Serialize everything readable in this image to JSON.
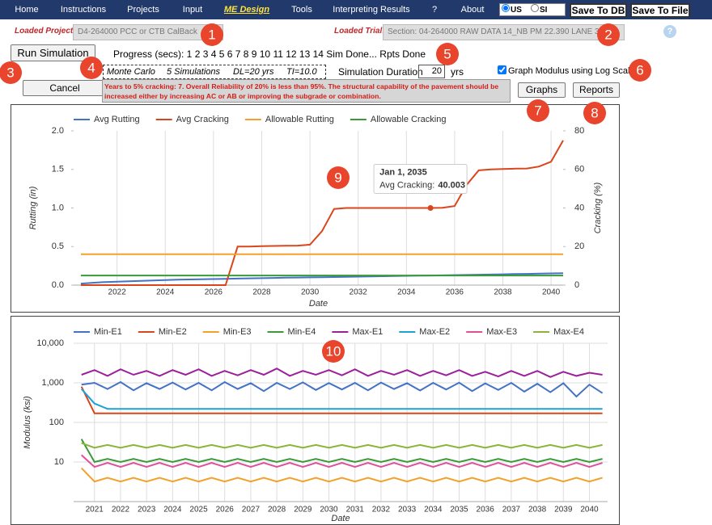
{
  "menu": [
    "Home",
    "Instructions",
    "Projects",
    "Input",
    "ME Design",
    "Tools",
    "Interpreting Results",
    "?",
    "About"
  ],
  "units": {
    "options": [
      "US",
      "SI"
    ],
    "selected": 0
  },
  "buttons": {
    "save_db": "Save To DB",
    "save_file": "Save To File",
    "run": "Run Simulation",
    "cancel": "Cancel",
    "graphs": "Graphs",
    "reports": "Reports"
  },
  "project": {
    "label": "Loaded Project:",
    "value": "D4-264000 PCC or CTB CalBack"
  },
  "trial": {
    "label": "Loaded Trial:",
    "value": "Section: 04-264000 RAW DATA 14_NB PM 22.390 LANE 3"
  },
  "help_icon": "?",
  "progress": "Progress (secs): 1 2 3 4 5 6 7 8 9 10 11 12 13 14 Sim Done... Rpts Done",
  "monte_carlo": [
    "Monte Carlo",
    "5 Simulations",
    "DL=20 yrs",
    "TI=10.0"
  ],
  "duration": {
    "label": "Simulation Duration",
    "value": "20",
    "unit": "yrs"
  },
  "log_scale": {
    "label": "Graph Modulus using Log Scale",
    "checked": true
  },
  "warning": "Years to 5% cracking: 7. Overall Reliability of 20% is less than 95%. The structural capability of the pavement should be increased either by increasing AC or AB or improving the subgrade or combination.",
  "callouts": [
    "1",
    "2",
    "3",
    "4",
    "5",
    "6",
    "7",
    "8",
    "9",
    "10"
  ],
  "chart_data": [
    {
      "type": "line",
      "xlabel": "Date",
      "ylabel": "Rutting (in)",
      "y2label": "Cracking (%)",
      "x": [
        2020.5,
        2021,
        2021.5,
        2022,
        2022.5,
        2023,
        2023.5,
        2024,
        2024.5,
        2025,
        2025.5,
        2026,
        2026.5,
        2027,
        2027.5,
        2028,
        2028.5,
        2029,
        2029.5,
        2030,
        2030.5,
        2031,
        2031.5,
        2032,
        2032.5,
        2033,
        2033.5,
        2034,
        2034.5,
        2035,
        2035.5,
        2036,
        2036.5,
        2037,
        2037.5,
        2038,
        2038.5,
        2039,
        2039.5,
        2040,
        2040.5
      ],
      "xlim": [
        2020.2,
        2040.5
      ],
      "xticks": [
        2022,
        2024,
        2026,
        2028,
        2030,
        2032,
        2034,
        2036,
        2038,
        2040
      ],
      "ylim": [
        0,
        2
      ],
      "yticks": [
        {
          "value": 0,
          "label": "0.0"
        },
        0.5,
        {
          "value": 1,
          "label": "1.0"
        },
        1.5,
        {
          "value": 2,
          "label": "2.0"
        }
      ],
      "y2lim": [
        0,
        80
      ],
      "y2ticks": [
        0,
        20,
        40,
        60,
        80
      ],
      "xgrid": true,
      "ygrid": false,
      "log_scale": false,
      "series": [
        {
          "name": "Avg Rutting",
          "color": "#4472c4",
          "values": [
            0.02,
            0.03,
            0.04,
            0.045,
            0.05,
            0.055,
            0.06,
            0.065,
            0.07,
            0.073,
            0.076,
            0.079,
            0.082,
            0.085,
            0.088,
            0.09,
            0.093,
            0.096,
            0.098,
            0.1,
            0.102,
            0.105,
            0.107,
            0.11,
            0.112,
            0.115,
            0.117,
            0.12,
            0.122,
            0.125,
            0.127,
            0.13,
            0.132,
            0.135,
            0.137,
            0.14,
            0.143,
            0.146,
            0.149,
            0.152,
            0.155
          ]
        },
        {
          "name": "Avg Cracking",
          "color": "#d9461b",
          "axis": "y2",
          "values": [
            0,
            0,
            0,
            0,
            0,
            0,
            0,
            0,
            0,
            0,
            0,
            0,
            0,
            20,
            20,
            20.2,
            20.3,
            20.4,
            20.5,
            21,
            28,
            39.5,
            40,
            40,
            40,
            40,
            40,
            40,
            40,
            40.003,
            40.1,
            41,
            52,
            59.5,
            60,
            60.2,
            60.4,
            60.5,
            61.5,
            64,
            75
          ]
        },
        {
          "name": "Allowable Rutting",
          "color": "#f5a02a",
          "values": [
            0.4,
            0.4,
            0.4,
            0.4,
            0.4,
            0.4,
            0.4,
            0.4,
            0.4,
            0.4,
            0.4,
            0.4,
            0.4,
            0.4,
            0.4,
            0.4,
            0.4,
            0.4,
            0.4,
            0.4,
            0.4,
            0.4,
            0.4,
            0.4,
            0.4,
            0.4,
            0.4,
            0.4,
            0.4,
            0.4,
            0.4,
            0.4,
            0.4,
            0.4,
            0.4,
            0.4,
            0.4,
            0.4,
            0.4,
            0.4,
            0.4
          ]
        },
        {
          "name": "Allowable Cracking",
          "color": "#3a9a3a",
          "axis": "y2",
          "values": [
            5,
            5,
            5,
            5,
            5,
            5,
            5,
            5,
            5,
            5,
            5,
            5,
            5,
            5,
            5,
            5,
            5,
            5,
            5,
            5,
            5,
            5,
            5,
            5,
            5,
            5,
            5,
            5,
            5,
            5,
            5,
            5,
            5,
            5,
            5,
            5,
            5,
            5,
            5,
            5,
            5
          ]
        }
      ],
      "tooltip": {
        "title": "Jan 1, 2035",
        "label": "Avg Cracking:",
        "x": 2035
      }
    },
    {
      "type": "line",
      "xlabel": "Date",
      "ylabel": "Modulus (ksi)",
      "x": [
        2020.5,
        2021,
        2021.5,
        2022,
        2022.5,
        2023,
        2023.5,
        2024,
        2024.5,
        2025,
        2025.5,
        2026,
        2026.5,
        2027,
        2027.5,
        2028,
        2028.5,
        2029,
        2029.5,
        2030,
        2030.5,
        2031,
        2031.5,
        2032,
        2032.5,
        2033,
        2033.5,
        2034,
        2034.5,
        2035,
        2035.5,
        2036,
        2036.5,
        2037,
        2037.5,
        2038,
        2038.5,
        2039,
        2039.5,
        2040,
        2040.5
      ],
      "xlim": [
        2020.2,
        2040.7
      ],
      "xticks": [
        2021,
        2022,
        2023,
        2024,
        2025,
        2026,
        2027,
        2028,
        2029,
        2030,
        2031,
        2032,
        2033,
        2034,
        2035,
        2036,
        2037,
        2038,
        2039,
        2040
      ],
      "ylim": [
        1,
        10000
      ],
      "yticks": [
        10,
        100,
        {
          "value": 1000,
          "label": "1,000"
        },
        {
          "value": 10000,
          "label": "10,000"
        }
      ],
      "xgrid": true,
      "ygrid": true,
      "log_scale": true,
      "series": [
        {
          "name": "Min-E1",
          "color": "#4472c4",
          "values": [
            900,
            1000,
            700,
            1050,
            650,
            980,
            700,
            1020,
            680,
            1000,
            650,
            1050,
            700,
            980,
            620,
            1000,
            700,
            1030,
            660,
            990,
            680,
            1000,
            650,
            1020,
            700,
            980,
            640,
            1000,
            680,
            1010,
            620,
            970,
            660,
            1000,
            600,
            950,
            580,
            980,
            450,
            900,
            550
          ]
        },
        {
          "name": "Min-E2",
          "color": "#d9461b",
          "values": [
            800,
            170,
            170,
            170,
            170,
            170,
            170,
            170,
            170,
            170,
            170,
            170,
            170,
            170,
            170,
            170,
            170,
            170,
            170,
            170,
            170,
            170,
            170,
            170,
            170,
            170,
            170,
            170,
            170,
            170,
            170,
            170,
            170,
            170,
            170,
            170,
            170,
            170,
            170,
            170,
            170
          ]
        },
        {
          "name": "Min-E3",
          "color": "#f5a02a",
          "values": [
            7,
            3.2,
            4,
            3.2,
            4,
            3.2,
            4,
            3.2,
            4,
            3.2,
            4,
            3.2,
            4,
            3.2,
            4,
            3.2,
            4,
            3.2,
            4,
            3.2,
            4,
            3.2,
            4,
            3.2,
            4,
            3.2,
            4,
            3.2,
            4,
            3.2,
            4,
            3.2,
            4,
            3.2,
            4,
            3.2,
            4,
            3.2,
            4,
            3.2,
            4
          ]
        },
        {
          "name": "Min-E4",
          "color": "#3a9a3a",
          "values": [
            38,
            10,
            12,
            10,
            12,
            10,
            12,
            10,
            12,
            10,
            12,
            10,
            12,
            10,
            12,
            10,
            12,
            10,
            12,
            10,
            12,
            10,
            12,
            10,
            12,
            10,
            12,
            10,
            12,
            10,
            12,
            10,
            12,
            10,
            12,
            10,
            12,
            10,
            12,
            10,
            12
          ]
        },
        {
          "name": "Max-E1",
          "color": "#9c1f9c",
          "values": [
            1600,
            2100,
            1500,
            2200,
            1600,
            2000,
            1500,
            2100,
            1600,
            2200,
            1500,
            2000,
            1550,
            2100,
            1600,
            2300,
            1500,
            2000,
            1600,
            2100,
            1550,
            2200,
            1500,
            2000,
            1600,
            2100,
            1500,
            2000,
            1550,
            2100,
            1500,
            1900,
            1450,
            2000,
            1500,
            2000,
            1400,
            1900,
            1500,
            1800,
            1600
          ]
        },
        {
          "name": "Max-E2",
          "color": "#1aa3d6",
          "values": [
            700,
            300,
            220,
            220,
            220,
            220,
            220,
            220,
            220,
            220,
            220,
            220,
            220,
            220,
            220,
            220,
            220,
            220,
            220,
            220,
            220,
            220,
            220,
            220,
            220,
            220,
            220,
            220,
            220,
            220,
            220,
            220,
            220,
            220,
            220,
            220,
            220,
            220,
            220,
            220,
            220
          ]
        },
        {
          "name": "Max-E3",
          "color": "#e0509a",
          "values": [
            15,
            7.5,
            9.5,
            7.5,
            9.5,
            7.5,
            9.5,
            7.5,
            9.5,
            7.5,
            9.5,
            7.5,
            9.5,
            7.5,
            9.5,
            7.5,
            9.5,
            7.5,
            9.5,
            7.5,
            9.5,
            7.5,
            9.5,
            7.5,
            9.5,
            7.5,
            9.5,
            7.5,
            9.5,
            7.5,
            9.5,
            7.5,
            9.5,
            7.5,
            9.5,
            7.5,
            9.5,
            7.5,
            9.5,
            7.5,
            9.5
          ]
        },
        {
          "name": "Max-E4",
          "color": "#8db33a",
          "values": [
            30,
            23,
            27,
            23,
            27,
            23,
            27,
            23,
            27,
            23,
            27,
            23,
            27,
            23,
            27,
            23,
            27,
            23,
            27,
            23,
            27,
            23,
            27,
            23,
            27,
            23,
            27,
            23,
            27,
            23,
            27,
            23,
            27,
            23,
            27,
            23,
            27,
            23,
            27,
            23,
            27
          ]
        }
      ]
    }
  ]
}
